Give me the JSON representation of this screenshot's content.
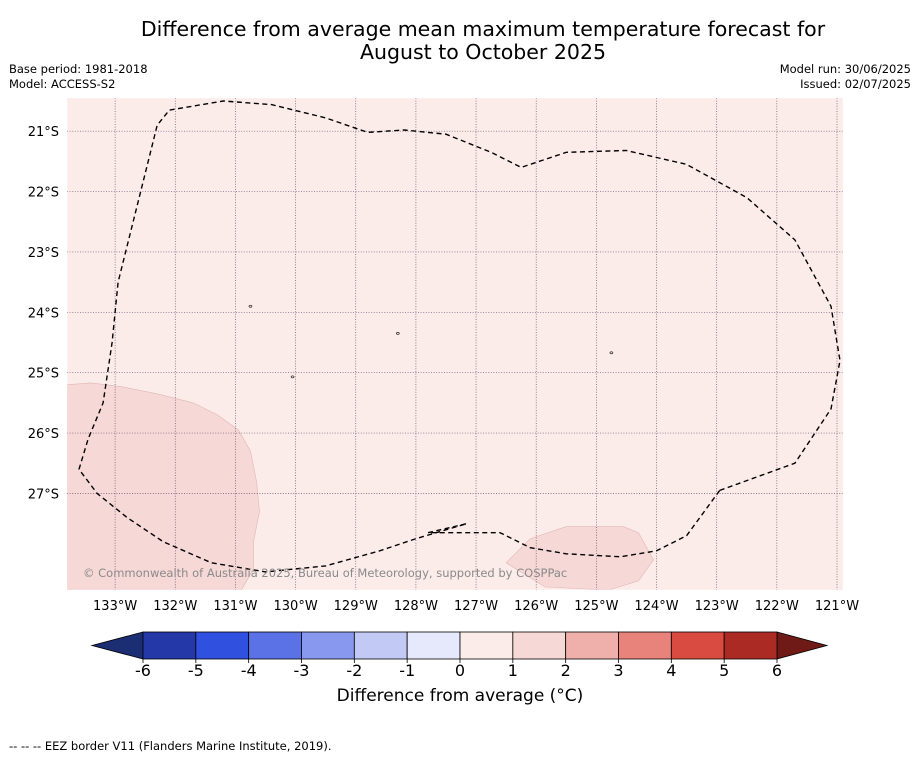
{
  "header": {
    "title_line1": "Difference from average mean maximum temperature forecast for",
    "title_line2": "August to October 2025",
    "base_period": "Base period: 1981-2018",
    "model": "Model: ACCESS-S2",
    "model_run": "Model run: 30/06/2025",
    "issued": "Issued: 02/07/2025"
  },
  "map": {
    "lon_range": [
      -133.8,
      -120.9
    ],
    "lat_range": [
      -28.6,
      -20.45
    ],
    "lon_labels": [
      "133°W",
      "132°W",
      "131°W",
      "130°W",
      "129°W",
      "128°W",
      "127°W",
      "126°W",
      "125°W",
      "124°W",
      "123°W",
      "122°W",
      "121°W"
    ],
    "lat_labels": [
      "21°S",
      "22°S",
      "23°S",
      "24°S",
      "25°S",
      "26°S",
      "27°S"
    ],
    "background_category": "0 to 1",
    "background_color": "#fbecea",
    "copyright": "© Commonwealth of Australia 2025, Bureau of Meteorology, supported by COSPPac",
    "anomaly_regions": [
      {
        "category": "1 to 2",
        "color": "#f6d8d6",
        "points": [
          [
            -133.8,
            -25.2
          ],
          [
            -133.4,
            -25.17
          ],
          [
            -132.9,
            -25.23
          ],
          [
            -132.3,
            -25.35
          ],
          [
            -131.7,
            -25.5
          ],
          [
            -131.3,
            -25.7
          ],
          [
            -130.95,
            -25.95
          ],
          [
            -130.75,
            -26.3
          ],
          [
            -130.65,
            -26.8
          ],
          [
            -130.6,
            -27.3
          ],
          [
            -130.7,
            -27.8
          ],
          [
            -130.7,
            -28.25
          ],
          [
            -130.9,
            -28.6
          ],
          [
            -133.8,
            -28.6
          ]
        ]
      },
      {
        "category": "1 to 2",
        "color": "#f6d8d6",
        "points": [
          [
            -126.5,
            -28.15
          ],
          [
            -126.1,
            -27.75
          ],
          [
            -125.5,
            -27.55
          ],
          [
            -124.55,
            -27.55
          ],
          [
            -124.3,
            -27.65
          ],
          [
            -124.05,
            -28.1
          ],
          [
            -124.3,
            -28.45
          ],
          [
            -124.8,
            -28.6
          ],
          [
            -125.85,
            -28.55
          ]
        ]
      }
    ],
    "eez_border": [
      [
        -122.95,
        -26.95
      ],
      [
        -121.7,
        -26.5
      ],
      [
        -121.1,
        -25.6
      ],
      [
        -120.95,
        -24.8
      ],
      [
        -121.1,
        -23.9
      ],
      [
        -121.7,
        -22.8
      ],
      [
        -122.5,
        -22.1
      ],
      [
        -123.5,
        -21.55
      ],
      [
        -124.5,
        -21.32
      ],
      [
        -125.5,
        -21.35
      ],
      [
        -126.25,
        -21.6
      ],
      [
        -126.75,
        -21.35
      ],
      [
        -127.5,
        -21.05
      ],
      [
        -128.2,
        -20.98
      ],
      [
        -128.8,
        -21.02
      ],
      [
        -129.5,
        -20.78
      ],
      [
        -130.4,
        -20.56
      ],
      [
        -131.2,
        -20.5
      ],
      [
        -132.1,
        -20.65
      ],
      [
        -132.3,
        -20.9
      ],
      [
        -132.95,
        -23.5
      ],
      [
        -133.05,
        -24.5
      ],
      [
        -133.2,
        -25.5
      ],
      [
        -133.45,
        -26.1
      ],
      [
        -133.6,
        -26.6
      ],
      [
        -133.3,
        -27.0
      ],
      [
        -132.8,
        -27.4
      ],
      [
        -132.2,
        -27.8
      ],
      [
        -131.4,
        -28.15
      ],
      [
        -130.5,
        -28.3
      ],
      [
        -129.5,
        -28.2
      ],
      [
        -128.6,
        -27.95
      ],
      [
        -128.0,
        -27.75
      ],
      [
        -127.15,
        -27.5
      ],
      [
        -127.8,
        -27.65
      ],
      [
        -126.6,
        -27.65
      ],
      [
        -126.1,
        -27.9
      ],
      [
        -125.5,
        -28.0
      ],
      [
        -124.6,
        -28.05
      ],
      [
        -124.0,
        -27.95
      ],
      [
        -123.5,
        -27.7
      ]
    ],
    "small_islands": [
      {
        "lon": -130.75,
        "lat": -23.9,
        "w": 0.02,
        "h": 0.01
      },
      {
        "lon": -128.3,
        "lon2": -128.24,
        "lat": -24.35,
        "lat2": -24.4,
        "w": 0.06,
        "h": 0.05
      },
      {
        "lon": -124.75,
        "lat": -24.67,
        "w": 0.03,
        "h": 0.01
      },
      {
        "lon": -130.05,
        "lat": -25.07,
        "w": 0.04,
        "h": 0.02
      }
    ]
  },
  "colorbar": {
    "ticks": [
      "-6",
      "-5",
      "-4",
      "-3",
      "-2",
      "-1",
      "0",
      "1",
      "2",
      "3",
      "4",
      "5",
      "6"
    ],
    "low_extend_color": "#1b2d73",
    "high_extend_color": "#6f1a17",
    "bins": [
      {
        "from": -6,
        "to": -5,
        "color": "#2438a8"
      },
      {
        "from": -5,
        "to": -4,
        "color": "#3050e0"
      },
      {
        "from": -4,
        "to": -3,
        "color": "#5a72e6"
      },
      {
        "from": -3,
        "to": -2,
        "color": "#8898ee"
      },
      {
        "from": -2,
        "to": -1,
        "color": "#c2c9f5"
      },
      {
        "from": -1,
        "to": 0,
        "color": "#e6e9fb"
      },
      {
        "from": 0,
        "to": 1,
        "color": "#fbecea"
      },
      {
        "from": 1,
        "to": 2,
        "color": "#f6d8d6"
      },
      {
        "from": 2,
        "to": 3,
        "color": "#efafaa"
      },
      {
        "from": 3,
        "to": 4,
        "color": "#e7837b"
      },
      {
        "from": 4,
        "to": 5,
        "color": "#d94a40"
      },
      {
        "from": 5,
        "to": 6,
        "color": "#ab2a24"
      }
    ],
    "unit_label": "Difference from average (°C)"
  },
  "footnote": "-- -- -- EEZ border V11 (Flanders Marine Institute, 2019)."
}
